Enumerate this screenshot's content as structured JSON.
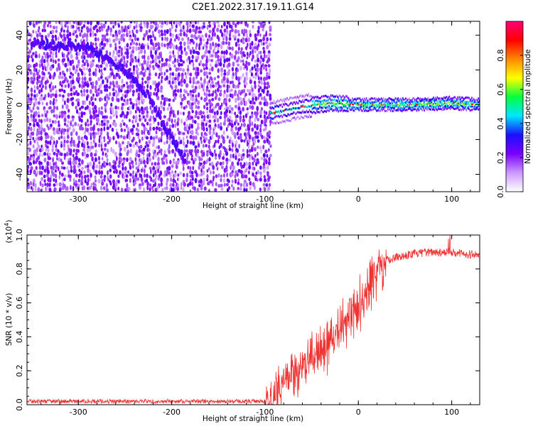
{
  "title": "C2E1.2022.317.19.11.G14",
  "chart_data": [
    {
      "type": "heatmap",
      "xlabel": "Height of straight line (km)",
      "ylabel": "Frequency (Hz)",
      "xlim": [
        -355,
        130
      ],
      "ylim": [
        -50,
        48
      ],
      "xticks": [
        -300,
        -200,
        -100,
        0,
        100
      ],
      "yticks": [
        -40,
        -20,
        0,
        20,
        40
      ],
      "colorbar": {
        "label": "Normalized spectral amplitude",
        "range": [
          0,
          1
        ],
        "ticks": [
          "0.0",
          "0.2",
          "0.4",
          "0.6",
          "0.8"
        ],
        "colormap": [
          "#ffffff",
          "#cc99ff",
          "#7a00ff",
          "#1a10ff",
          "#00e5ff",
          "#00ff40",
          "#ffff00",
          "#ff8800",
          "#ff0000",
          "#ff0077"
        ]
      },
      "features": {
        "noise_region_x": [
          -355,
          -95
        ],
        "descending_track": [
          [
            -350,
            35
          ],
          [
            -290,
            33
          ],
          [
            -250,
            20
          ],
          [
            -225,
            5
          ],
          [
            -205,
            -15
          ],
          [
            -185,
            -33
          ]
        ],
        "carrier_line": [
          [
            -95,
            -5
          ],
          [
            -60,
            -1
          ],
          [
            -30,
            1
          ],
          [
            0,
            0
          ],
          [
            50,
            0
          ],
          [
            100,
            1
          ],
          [
            130,
            0
          ]
        ]
      }
    },
    {
      "type": "line",
      "xlabel": "Height of straight line (km)",
      "ylabel": "SNR (10 * v/v)",
      "y_multiplier": "(x10",
      "y_multiplier_exp": "4",
      "y_multiplier_close": ")",
      "xlim": [
        -355,
        130
      ],
      "ylim": [
        0,
        1.0
      ],
      "xticks": [
        -300,
        -200,
        -100,
        0,
        100
      ],
      "yticks": [
        "0.0",
        "0.2",
        "0.4",
        "0.6",
        "0.8",
        "1.0"
      ],
      "series": [
        {
          "color": "#ee3333",
          "trend": {
            "x": [
              -355,
              -100,
              -90,
              -80,
              -70,
              -60,
              -50,
              -40,
              -30,
              -20,
              -10,
              0,
              10,
              20,
              30,
              40,
              50,
              60,
              80,
              100,
              130
            ],
            "y": [
              0.02,
              0.02,
              0.06,
              0.15,
              0.18,
              0.22,
              0.28,
              0.33,
              0.38,
              0.45,
              0.52,
              0.6,
              0.72,
              0.8,
              0.85,
              0.87,
              0.88,
              0.89,
              0.9,
              0.9,
              0.88
            ]
          }
        }
      ]
    }
  ]
}
